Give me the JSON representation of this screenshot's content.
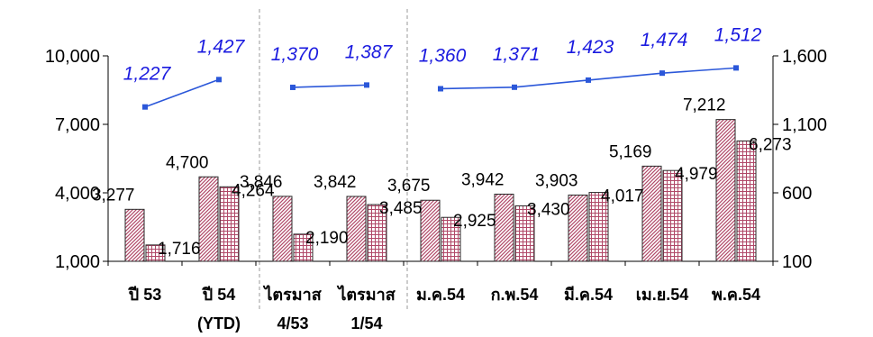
{
  "chart_data": {
    "type": "bar+line",
    "categories": [
      [
        "ปี 53",
        ""
      ],
      [
        "ปี 54",
        "(YTD)"
      ],
      [
        "ไตรมาส",
        "4/53"
      ],
      [
        "ไตรมาส",
        "1/54"
      ],
      [
        "ม.ค.54",
        ""
      ],
      [
        "ก.พ.54",
        ""
      ],
      [
        "มี.ค.54",
        ""
      ],
      [
        "เม.ย.54",
        ""
      ],
      [
        "พ.ค.54",
        ""
      ]
    ],
    "bar_series": [
      {
        "values": [
          3277,
          4700,
          3846,
          3842,
          3675,
          3942,
          3903,
          5169,
          7212
        ],
        "labels": [
          "3,277",
          "4,700",
          "3,846",
          "3,842",
          "3,675",
          "3,942",
          "3,903",
          "5,169",
          "7,212"
        ],
        "pattern": "diagonal-hatch",
        "color": "#a0405c"
      },
      {
        "values": [
          1716,
          4264,
          2190,
          3485,
          2925,
          3430,
          4017,
          4979,
          6273
        ],
        "labels": [
          "1,716",
          "4,264",
          "2,190",
          "3,485",
          "2,925",
          "3,430",
          "4,017",
          "4,979",
          "6,273"
        ],
        "pattern": "grid-hatch",
        "color": "#a0405c"
      }
    ],
    "line_series": {
      "values": [
        1227,
        1427,
        1370,
        1387,
        1360,
        1371,
        1423,
        1474,
        1512
      ],
      "labels": [
        "1,227",
        "1,427",
        "1,370",
        "1,387",
        "1,360",
        "1,371",
        "1,423",
        "1,474",
        "1,512"
      ],
      "segments": [
        [
          0,
          1
        ],
        [
          2,
          3
        ],
        [
          4,
          8
        ]
      ],
      "axis": "right",
      "color": "#2b57d9",
      "label_color": "#1a1adf"
    },
    "y_left": {
      "min": 1000,
      "max": 10000,
      "ticks": [
        "1,000",
        "4,000",
        "7,000",
        "10,000"
      ],
      "tick_values": [
        1000,
        4000,
        7000,
        10000
      ]
    },
    "y_right": {
      "min": 100,
      "max": 1600,
      "ticks": [
        "100",
        "600",
        "1,100",
        "1,600"
      ],
      "tick_values": [
        100,
        600,
        1100,
        1600
      ]
    },
    "separators_after": [
      1,
      3
    ]
  }
}
